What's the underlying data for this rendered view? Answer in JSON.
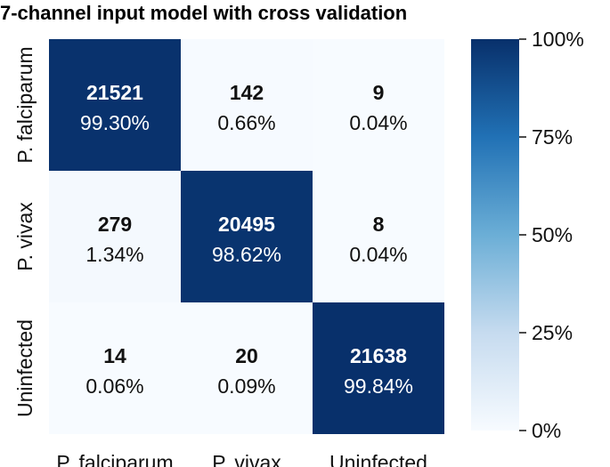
{
  "chart_data": {
    "type": "heatmap",
    "title": "7-channel input model with cross validation",
    "row_labels": [
      "P. falciparum",
      "P. vivax",
      "Uninfected"
    ],
    "col_labels": [
      "P. falciparum",
      "P. vivax",
      "Uninfected"
    ],
    "counts": [
      [
        21521,
        142,
        9
      ],
      [
        279,
        20495,
        8
      ],
      [
        14,
        20,
        21638
      ]
    ],
    "percentages": [
      [
        "99.30%",
        "0.66%",
        "0.04%"
      ],
      [
        "1.34%",
        "98.62%",
        "0.04%"
      ],
      [
        "0.06%",
        "0.09%",
        "99.84%"
      ]
    ],
    "values": [
      [
        99.3,
        0.66,
        0.04
      ],
      [
        1.34,
        98.62,
        0.04
      ],
      [
        0.06,
        0.09,
        99.84
      ]
    ],
    "colorbar": {
      "ticks": [
        "100%",
        "75%",
        "50%",
        "25%",
        "0%"
      ],
      "tick_values": [
        100,
        75,
        50,
        25,
        0
      ],
      "range": [
        0,
        100
      ],
      "colors": [
        "#f7fbff",
        "#c6dbef",
        "#6baed6",
        "#2171b5",
        "#08306b"
      ]
    },
    "accent": "#0f3b7a"
  }
}
